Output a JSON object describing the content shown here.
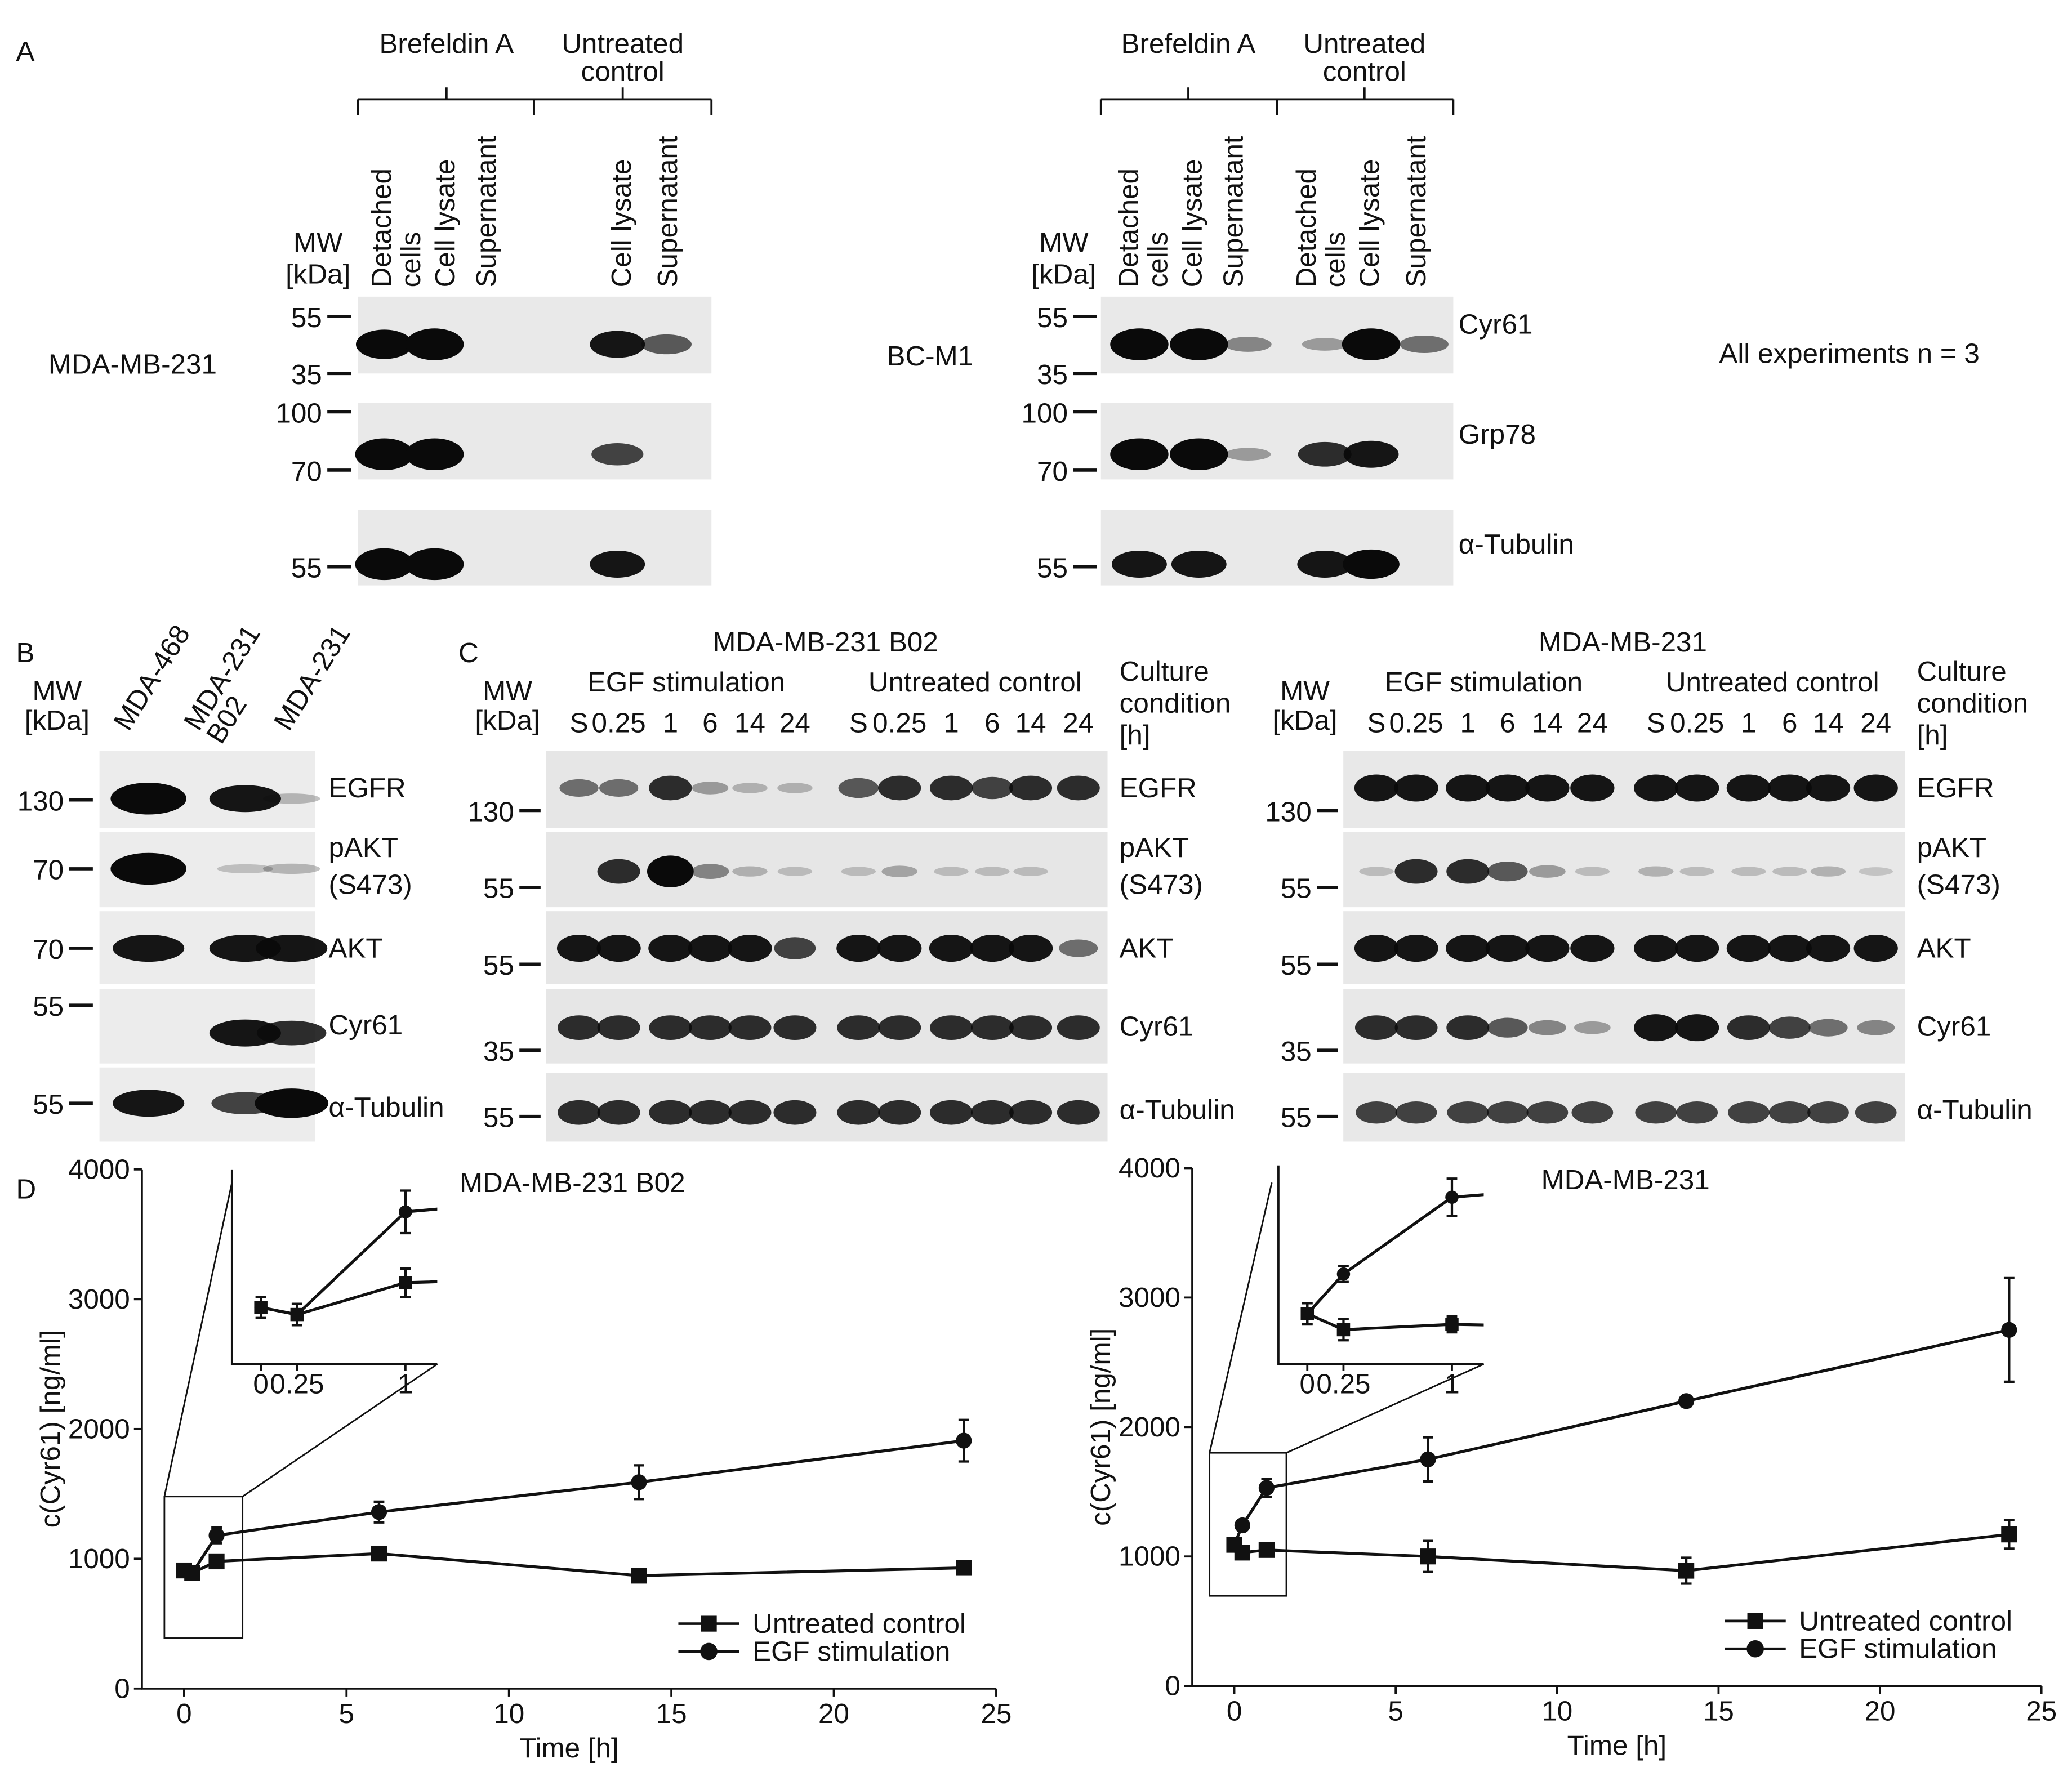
{
  "panel_a": {
    "label": "A",
    "note": "All experiments n = 3",
    "proteins": [
      [
        "Cyr61"
      ],
      [
        "Grp78"
      ],
      [
        "α-Tubulin"
      ]
    ],
    "blots": [
      {
        "cell_line": "MDA-MB-231",
        "headers": [
          [
            "Brefeldin A"
          ],
          [
            "Untreated",
            "control"
          ]
        ],
        "lanes": [
          [
            "Detached",
            "cells"
          ],
          [
            "Cell lysate"
          ],
          [
            "Supernatant"
          ],
          [
            "Cell lysate"
          ],
          [
            "Supernatant"
          ]
        ],
        "mw_label": [
          "MW",
          "[kDa]"
        ],
        "mw_markers": [
          55,
          35,
          100,
          70,
          55
        ]
      },
      {
        "cell_line": "BC-M1",
        "headers": [
          [
            "Brefeldin A"
          ],
          [
            "Untreated",
            "control"
          ]
        ],
        "lanes": [
          [
            "Detached",
            "cells"
          ],
          [
            "Cell lysate"
          ],
          [
            "Supernatant"
          ],
          [
            "Detached",
            "cells"
          ],
          [
            "Cell lysate"
          ],
          [
            "Supernatant"
          ]
        ],
        "mw_label": [
          "MW",
          "[kDa]"
        ],
        "mw_markers": [
          55,
          35,
          100,
          70,
          55
        ]
      }
    ]
  },
  "panel_b": {
    "label": "B",
    "lanes": [
      [
        "MDA-468"
      ],
      [
        "MDA-231",
        "B02"
      ],
      [
        "MDA-231"
      ]
    ],
    "mw_label": [
      "MW",
      "[kDa]"
    ],
    "mw_markers": [
      130,
      70,
      70,
      55,
      55
    ],
    "proteins": [
      [
        "EGFR"
      ],
      [
        "pAKT",
        "(S473)"
      ],
      [
        "AKT"
      ],
      [
        "Cyr61"
      ],
      [
        "α-Tubulin"
      ]
    ]
  },
  "panel_c": {
    "label": "C",
    "blots": [
      {
        "title": "MDA-MB-231 B02",
        "groups": [
          {
            "name": "EGF stimulation",
            "times": [
              "S",
              "0.25",
              "1",
              "6",
              "14",
              "24"
            ]
          },
          {
            "name": "Untreated control",
            "times": [
              "S",
              "0.25",
              "1",
              "6",
              "14",
              "24"
            ]
          }
        ],
        "culture_label": [
          "Culture",
          "condition",
          "[h]"
        ],
        "mw_label": [
          "MW",
          "[kDa]"
        ],
        "mw_markers": [
          130,
          55,
          55,
          35,
          55
        ],
        "proteins": [
          [
            "EGFR"
          ],
          [
            "pAKT",
            "(S473)"
          ],
          [
            "AKT"
          ],
          [
            "Cyr61"
          ],
          [
            "α-Tubulin"
          ]
        ]
      },
      {
        "title": "MDA-MB-231",
        "groups": [
          {
            "name": "EGF stimulation",
            "times": [
              "S",
              "0.25",
              "1",
              "6",
              "14",
              "24"
            ]
          },
          {
            "name": "Untreated control",
            "times": [
              "S",
              "0.25",
              "1",
              "6",
              "14",
              "24"
            ]
          }
        ],
        "culture_label": [
          "Culture",
          "condition",
          "[h]"
        ],
        "mw_label": [
          "MW",
          "[kDa]"
        ],
        "mw_markers": [
          130,
          55,
          55,
          35,
          55
        ],
        "proteins": [
          [
            "EGFR"
          ],
          [
            "pAKT",
            "(S473)"
          ],
          [
            "AKT"
          ],
          [
            "Cyr61"
          ],
          [
            "α-Tubulin"
          ]
        ]
      }
    ]
  },
  "panel_d": {
    "label": "D"
  },
  "chart_data": [
    {
      "type": "line",
      "title": "MDA-MB-231 B02",
      "x_label": "Time [h]",
      "y_label": "c(Cyr61) [ng/ml]",
      "x": [
        0,
        0.25,
        1,
        6,
        14,
        24
      ],
      "xlim": [
        -1.3,
        25
      ],
      "xticks": [
        0,
        5,
        10,
        15,
        20,
        25
      ],
      "ylim": [
        0,
        4000
      ],
      "yticks": [
        0,
        1000,
        2000,
        3000,
        4000
      ],
      "legend": "lower right",
      "series": [
        {
          "name": "Untreated control",
          "color": "#111111",
          "marker": "square",
          "values": [
            910,
            890,
            980,
            1040,
            870,
            930
          ],
          "errors": [
            30,
            30,
            40,
            40,
            40,
            30
          ]
        },
        {
          "name": "EGF stimulation",
          "color": "#111111",
          "marker": "circle",
          "values": [
            910,
            890,
            1180,
            1360,
            1590,
            1910
          ],
          "errors": [
            30,
            30,
            60,
            80,
            130,
            160
          ]
        }
      ],
      "inset": {
        "xlim": [
          -0.2,
          1.22
        ],
        "xticks": [
          0,
          0.25,
          1
        ],
        "ylim": [
          750,
          1300
        ]
      }
    },
    {
      "type": "line",
      "title": "MDA-MB-231",
      "x_label": "Time [h]",
      "y_label": "c(Cyr61) [ng/ml]",
      "x": [
        0,
        0.25,
        1,
        6,
        14,
        24
      ],
      "xlim": [
        -1.3,
        25
      ],
      "xticks": [
        0,
        5,
        10,
        15,
        20,
        25
      ],
      "ylim": [
        0,
        4000
      ],
      "yticks": [
        0,
        1000,
        2000,
        3000,
        4000
      ],
      "legend": "lower right",
      "series": [
        {
          "name": "Untreated control",
          "color": "#111111",
          "marker": "square",
          "values": [
            1090,
            1030,
            1050,
            1000,
            890,
            1170
          ],
          "errors": [
            40,
            40,
            30,
            120,
            100,
            110
          ]
        },
        {
          "name": "EGF stimulation",
          "color": "#111111",
          "marker": "circle",
          "values": [
            1090,
            1240,
            1530,
            1750,
            2200,
            2750
          ],
          "errors": [
            40,
            30,
            70,
            170,
            40,
            400
          ]
        }
      ],
      "inset": {
        "xlim": [
          -0.2,
          1.22
        ],
        "xticks": [
          0,
          0.25,
          1
        ],
        "ylim": [
          900,
          1650
        ]
      }
    }
  ]
}
